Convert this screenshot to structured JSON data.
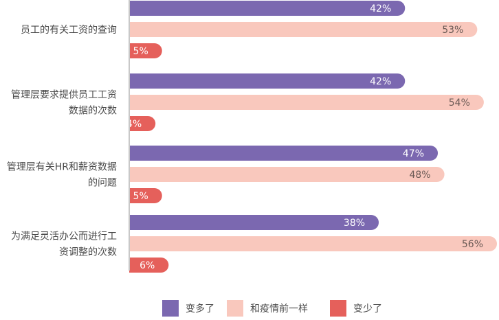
{
  "chart_data": {
    "type": "bar",
    "orientation": "horizontal",
    "categories": [
      [
        "员工的有关工资的查询"
      ],
      [
        "管理层要求提供员工工资",
        "数据的次数"
      ],
      [
        "管理层有关HR和薪资数据",
        "的问题"
      ],
      [
        "为满足灵活办公而进行工",
        "资调整的次数"
      ]
    ],
    "series": [
      {
        "name": "变多了",
        "color": "#7b68b0",
        "label_color": "#ffffff",
        "values": [
          42,
          42,
          47,
          38
        ]
      },
      {
        "name": "和疫情前一样",
        "color": "#f9c8bd",
        "label_color": "#6b5a55",
        "values": [
          53,
          54,
          48,
          56
        ]
      },
      {
        "name": "变少了",
        "color": "#e5605b",
        "label_color": "#ffffff",
        "values": [
          5,
          4,
          5,
          6
        ]
      }
    ],
    "value_suffix": "%",
    "xlim": [
      0,
      56
    ],
    "grid": false,
    "legend_position": "bottom"
  },
  "legend": [
    {
      "label": "变多了",
      "color": "#7b68b0"
    },
    {
      "label": "和疫情前一样",
      "color": "#f9c8bd"
    },
    {
      "label": "变少了",
      "color": "#e5605b"
    }
  ]
}
